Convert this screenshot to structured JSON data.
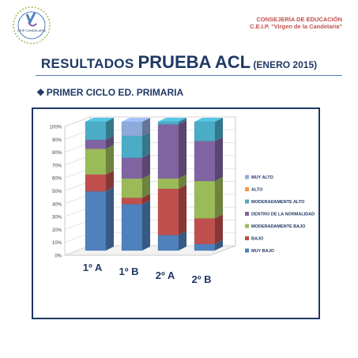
{
  "header": {
    "logo_text": "CEIP CANDELARIA",
    "org_line1": "CONSEJERÍA DE EDUCACIÓN",
    "org_line2": "C.E.I.P. \"Virgen de la Candelaria\""
  },
  "title": {
    "part1": "RESULTADOS ",
    "part2": "PRUEBA ACL",
    "part3": " (ENERO 2015)"
  },
  "subtitle": {
    "bullet": "❖",
    "text": "PRIMER CICLO ED. PRIMARIA"
  },
  "colors": {
    "muy_alto": "#8ea9db",
    "alto": "#f79646",
    "moderadamente_alto": "#4bacc6",
    "normalidad": "#8064a2",
    "moderadamente_bajo": "#9bbb59",
    "bajo": "#c0504d",
    "muy_bajo": "#4f81bd",
    "title": "#1f3864",
    "header": "#c0504d"
  },
  "chart_data": {
    "type": "bar",
    "stacked": true,
    "ylim": [
      0,
      100
    ],
    "yticks": [
      "0%",
      "10%",
      "20%",
      "30%",
      "40%",
      "50%",
      "60%",
      "70%",
      "80%",
      "90%",
      "100%"
    ],
    "categories": [
      "1º A",
      "1º B",
      "2º A",
      "2º B"
    ],
    "series": [
      {
        "name": "MUY BAJO",
        "color": "#4f81bd",
        "values": [
          46,
          36,
          12,
          5
        ]
      },
      {
        "name": "BAJO",
        "color": "#c0504d",
        "values": [
          13,
          5,
          36,
          20
        ]
      },
      {
        "name": "MODERADAMENTE BAJO",
        "color": "#9bbb59",
        "values": [
          20,
          15,
          8,
          29
        ]
      },
      {
        "name": "DENTRO DE LA NORMALIDAD",
        "color": "#8064a2",
        "values": [
          7,
          16,
          42,
          31
        ]
      },
      {
        "name": "MODERADAMENTE ALTO",
        "color": "#4bacc6",
        "values": [
          14,
          17,
          2,
          15
        ]
      },
      {
        "name": "ALTO",
        "color": "#f79646",
        "values": [
          0,
          0,
          0,
          0
        ]
      },
      {
        "name": "MUY ALTO",
        "color": "#8ea9db",
        "values": [
          0,
          11,
          0,
          0
        ]
      }
    ],
    "legend_position": "right",
    "grid": true
  }
}
